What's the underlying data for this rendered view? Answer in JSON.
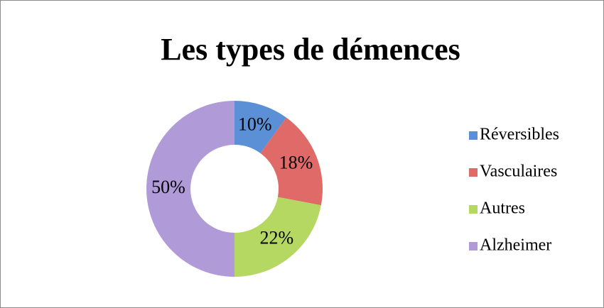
{
  "chart_data": {
    "type": "donut",
    "title": "Les types de démences",
    "categories": [
      "Réversibles",
      "Vasculaires",
      "Autres",
      "Alzheimer"
    ],
    "values": [
      10,
      18,
      22,
      50
    ],
    "value_labels": [
      "10%",
      "18%",
      "22%",
      "50%"
    ],
    "colors": [
      "#5b8fd6",
      "#e06a68",
      "#b5d862",
      "#b19ad8"
    ],
    "legend": "right"
  }
}
